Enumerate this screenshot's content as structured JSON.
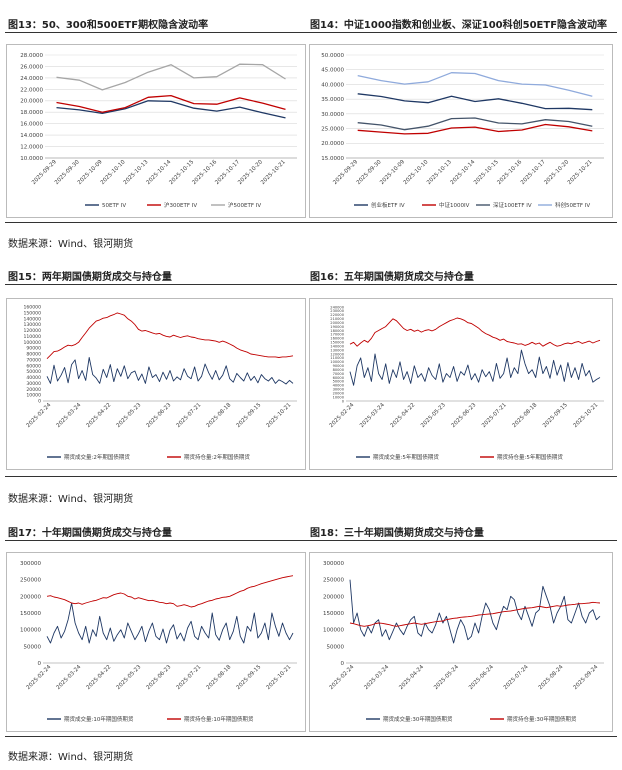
{
  "section1": {
    "title_left": "图13：50、300和500ETF期权隐含波动率",
    "title_right": "图14：中证1000指数和创业板、深证100科创50ETF隐含波动率",
    "source": "数据来源：Wind、银河期货"
  },
  "section2": {
    "title_left": "图15：两年期国债期货成交与持仓量",
    "title_right": "图16：五年期国债期货成交与持仓量",
    "source": "数据来源：Wind、银河期货"
  },
  "section3": {
    "title_left": "图17：十年期国债期货成交与持仓量",
    "title_right": "图18：三十年期国债期货成交与持仓量",
    "source": "数据来源：Wind、银河期货"
  },
  "colors": {
    "navy": "#1f3864",
    "red": "#c00000",
    "gray": "#a6a6a6",
    "lightblue": "#8faadc",
    "steel": "#44546a"
  },
  "chart_data": [
    {
      "id": "c13",
      "type": "line",
      "title": "50、300和500ETF期权隐含波动率",
      "categories": [
        "2025-09-29",
        "2025-09-30",
        "2025-10-09",
        "2025-10-10",
        "2025-10-13",
        "2025-10-14",
        "2025-10-15",
        "2025-10-16",
        "2025-10-17",
        "2025-10-20",
        "2025-10-21"
      ],
      "ylim": [
        10,
        28
      ],
      "yticks": [
        "10.0000",
        "12.0000",
        "14.0000",
        "16.0000",
        "18.0000",
        "20.0000",
        "22.0000",
        "24.0000",
        "26.0000",
        "28.0000"
      ],
      "series": [
        {
          "name": "50ETF IV",
          "color": "#1f3864",
          "values": [
            18.8,
            18.4,
            17.8,
            18.6,
            20.0,
            19.9,
            18.7,
            18.2,
            18.9,
            17.9,
            17.0
          ]
        },
        {
          "name": "沪300ETF IV",
          "color": "#c00000",
          "values": [
            19.7,
            19.0,
            18.0,
            18.8,
            20.6,
            20.9,
            19.5,
            19.4,
            20.5,
            19.6,
            18.5
          ]
        },
        {
          "name": "沪500ETF IV",
          "color": "#a6a6a6",
          "values": [
            24.1,
            23.6,
            21.9,
            23.2,
            25.0,
            26.3,
            24.0,
            24.2,
            26.4,
            26.3,
            23.8
          ]
        }
      ]
    },
    {
      "id": "c14",
      "type": "line",
      "title": "中证1000指数和创业板、深证100科创50ETF隐含波动率",
      "categories": [
        "2025-09-29",
        "2025-09-30",
        "2025-10-09",
        "2025-10-10",
        "2025-10-13",
        "2025-10-14",
        "2025-10-15",
        "2025-10-16",
        "2025-10-17",
        "2025-10-20",
        "2025-10-21"
      ],
      "ylim": [
        15,
        50
      ],
      "yticks": [
        "15.0000",
        "20.0000",
        "25.0000",
        "30.0000",
        "35.0000",
        "40.0000",
        "45.0000",
        "50.0000"
      ],
      "series": [
        {
          "name": "创业板ETF IV",
          "color": "#1f3864",
          "values": [
            36.8,
            35.9,
            34.4,
            33.8,
            36.0,
            34.2,
            35.1,
            33.6,
            31.8,
            31.9,
            31.4
          ]
        },
        {
          "name": "中证1000IV",
          "color": "#c00000",
          "values": [
            24.4,
            23.8,
            23.2,
            23.4,
            25.2,
            25.5,
            24.0,
            24.5,
            26.4,
            25.6,
            24.2
          ]
        },
        {
          "name": "深证100ETF IV",
          "color": "#44546a",
          "values": [
            27.0,
            26.2,
            24.6,
            25.8,
            28.4,
            28.6,
            26.9,
            26.6,
            28.0,
            27.4,
            25.8
          ]
        },
        {
          "name": "科创50ETF IV",
          "color": "#8faadc",
          "values": [
            43.0,
            41.3,
            40.1,
            40.9,
            44.0,
            43.7,
            41.3,
            40.1,
            39.8,
            38.0,
            36.0
          ]
        }
      ]
    },
    {
      "id": "c15",
      "type": "line",
      "title": "两年期国债期货成交与持仓量",
      "xticks": [
        "2025-02-24",
        "2025-03-24",
        "2025-04-22",
        "2025-05-23",
        "2025-06-23",
        "2025-07-21",
        "2025-08-18",
        "2025-09-15",
        "2025-10-21"
      ],
      "ylim": [
        0,
        160000
      ],
      "yticks": [
        "0",
        "10000",
        "20000",
        "30000",
        "40000",
        "50000",
        "60000",
        "70000",
        "80000",
        "90000",
        "100000",
        "110000",
        "120000",
        "130000",
        "140000",
        "150000",
        "160000"
      ],
      "series": [
        {
          "name": "期货成交量:2年期国债期货",
          "color": "#1f3864",
          "values": [
            42000,
            30000,
            61000,
            34000,
            44000,
            57000,
            31000,
            62000,
            70000,
            38000,
            52000,
            35000,
            74000,
            45000,
            39000,
            30000,
            54000,
            40000,
            62000,
            33000,
            55000,
            42000,
            60000,
            38000,
            48000,
            51000,
            35000,
            46000,
            30000,
            58000,
            40000,
            45000,
            33000,
            49000,
            37000,
            52000,
            34000,
            41000,
            36000,
            55000,
            42000,
            38000,
            58000,
            34000,
            42000,
            63000,
            48000,
            37000,
            52000,
            36000,
            44000,
            60000,
            38000,
            32000,
            47000,
            40000,
            34000,
            48000,
            35000,
            42000,
            31000,
            45000,
            38000,
            34000,
            40000,
            30000,
            36000,
            33000,
            29000,
            35000,
            30000
          ]
        },
        {
          "name": "期货持仓量:2年期国债期货",
          "color": "#c00000",
          "values": [
            72000,
            78000,
            84000,
            85000,
            88000,
            92000,
            95000,
            94000,
            96000,
            100000,
            108000,
            116000,
            124000,
            130000,
            136000,
            138000,
            141000,
            142000,
            145000,
            147000,
            150000,
            148000,
            146000,
            140000,
            136000,
            130000,
            122000,
            119000,
            120000,
            118000,
            116000,
            114000,
            115000,
            112000,
            110000,
            109000,
            112000,
            110000,
            108000,
            110000,
            111000,
            109000,
            108000,
            106000,
            105000,
            104000,
            104000,
            103000,
            102000,
            100000,
            102000,
            100000,
            97000,
            94000,
            90000,
            87000,
            85000,
            83000,
            80000,
            79000,
            78000,
            77000,
            76000,
            75000,
            75000,
            75000,
            74000,
            75000,
            75000,
            76000,
            77000
          ]
        }
      ]
    },
    {
      "id": "c16",
      "type": "line",
      "title": "五年期国债期货成交与持仓量",
      "xticks": [
        "2025-02-24",
        "2025-03-24",
        "2025-04-22",
        "2025-05-23",
        "2025-06-23",
        "2025-07-21",
        "2025-08-18",
        "2025-09-15",
        "2025-10-21"
      ],
      "ylim": [
        0,
        240000
      ],
      "yticks": [
        "0",
        "10000",
        "20000",
        "30000",
        "40000",
        "50000",
        "60000",
        "70000",
        "80000",
        "90000",
        "100000",
        "110000",
        "120000",
        "130000",
        "140000",
        "150000",
        "160000",
        "170000",
        "180000",
        "190000",
        "200000",
        "210000",
        "220000",
        "230000",
        "240000"
      ],
      "series": [
        {
          "name": "期货成交量:5年期国债期货",
          "color": "#1f3864",
          "values": [
            75000,
            40000,
            90000,
            110000,
            60000,
            85000,
            50000,
            120000,
            70000,
            55000,
            95000,
            45000,
            80000,
            60000,
            100000,
            55000,
            75000,
            45000,
            90000,
            60000,
            70000,
            50000,
            85000,
            65000,
            55000,
            95000,
            48000,
            70000,
            60000,
            88000,
            50000,
            75000,
            66000,
            92000,
            54000,
            70000,
            48000,
            80000,
            62000,
            75000,
            50000,
            96000,
            58000,
            70000,
            110000,
            60000,
            85000,
            70000,
            130000,
            95000,
            70000,
            80000,
            60000,
            112000,
            70000,
            88000,
            58000,
            104000,
            66000,
            92000,
            50000,
            98000,
            60000,
            85000,
            55000,
            96000,
            64000,
            78000,
            48000,
            55000,
            60000
          ]
        },
        {
          "name": "期货持仓量:5年期国债期货",
          "color": "#c00000",
          "values": [
            145000,
            150000,
            140000,
            148000,
            155000,
            150000,
            160000,
            175000,
            180000,
            185000,
            190000,
            200000,
            210000,
            205000,
            195000,
            185000,
            180000,
            183000,
            178000,
            181000,
            176000,
            180000,
            182000,
            179000,
            183000,
            190000,
            195000,
            200000,
            205000,
            208000,
            212000,
            210000,
            206000,
            200000,
            198000,
            192000,
            186000,
            178000,
            172000,
            168000,
            163000,
            160000,
            155000,
            158000,
            152000,
            150000,
            148000,
            145000,
            146000,
            142000,
            145000,
            150000,
            145000,
            148000,
            140000,
            145000,
            150000,
            144000,
            140000,
            142000,
            146000,
            148000,
            146000,
            150000,
            152000,
            147000,
            150000,
            153000,
            148000,
            152000,
            155000
          ]
        }
      ]
    },
    {
      "id": "c17",
      "type": "line",
      "title": "十年期国债期货成交与持仓量",
      "xticks": [
        "2025-02-24",
        "2025-03-24",
        "2025-04-22",
        "2025-05-23",
        "2025-06-23",
        "2025-07-21",
        "2025-08-18",
        "2025-09-15",
        "2025-10-21"
      ],
      "ylim": [
        0,
        300000
      ],
      "yticks": [
        "0",
        "50000",
        "100000",
        "150000",
        "200000",
        "250000",
        "300000"
      ],
      "series": [
        {
          "name": "期货成交量:10年期国债期货",
          "color": "#1f3864",
          "values": [
            80000,
            60000,
            90000,
            110000,
            75000,
            95000,
            130000,
            180000,
            120000,
            90000,
            70000,
            110000,
            60000,
            100000,
            80000,
            140000,
            90000,
            70000,
            105000,
            65000,
            85000,
            100000,
            75000,
            120000,
            95000,
            70000,
            88000,
            110000,
            64000,
            96000,
            120000,
            80000,
            70000,
            102000,
            60000,
            98000,
            115000,
            72000,
            90000,
            66000,
            105000,
            125000,
            80000,
            70000,
            110000,
            90000,
            75000,
            150000,
            85000,
            68000,
            100000,
            120000,
            70000,
            95000,
            140000,
            80000,
            60000,
            110000,
            95000,
            150000,
            75000,
            90000,
            120000,
            70000,
            150000,
            110000,
            80000,
            120000,
            90000,
            70000,
            90000
          ]
        },
        {
          "name": "期货持仓量:10年期国债期货",
          "color": "#c00000",
          "values": [
            200000,
            202000,
            198000,
            196000,
            193000,
            190000,
            185000,
            180000,
            178000,
            180000,
            176000,
            180000,
            183000,
            186000,
            188000,
            192000,
            196000,
            195000,
            200000,
            205000,
            208000,
            210000,
            207000,
            200000,
            198000,
            192000,
            196000,
            193000,
            190000,
            187000,
            188000,
            185000,
            182000,
            181000,
            178000,
            180000,
            178000,
            170000,
            172000,
            175000,
            172000,
            168000,
            170000,
            175000,
            178000,
            182000,
            186000,
            188000,
            192000,
            194000,
            197000,
            198000,
            200000,
            205000,
            210000,
            215000,
            218000,
            224000,
            228000,
            230000,
            234000,
            238000,
            241000,
            244000,
            247000,
            250000,
            253000,
            256000,
            258000,
            260000,
            262000
          ]
        }
      ]
    },
    {
      "id": "c18",
      "type": "line",
      "title": "三十年期国债期货成交与持仓量",
      "xticks": [
        "2025-02-24",
        "2025-03-24",
        "2025-04-24",
        "2025-05-24",
        "2025-06-24",
        "2025-07-24",
        "2025-08-24",
        "2025-09-24"
      ],
      "ylim": [
        0,
        300000
      ],
      "yticks": [
        "0",
        "50000",
        "100000",
        "150000",
        "200000",
        "250000",
        "300000"
      ],
      "series": [
        {
          "name": "期货成交量:30年期国债期货",
          "color": "#1f3864",
          "values": [
            250000,
            120000,
            150000,
            100000,
            80000,
            110000,
            90000,
            120000,
            130000,
            80000,
            100000,
            70000,
            95000,
            120000,
            100000,
            85000,
            110000,
            130000,
            140000,
            90000,
            80000,
            120000,
            100000,
            90000,
            115000,
            150000,
            120000,
            140000,
            100000,
            60000,
            100000,
            130000,
            110000,
            70000,
            80000,
            120000,
            90000,
            140000,
            180000,
            160000,
            120000,
            100000,
            140000,
            170000,
            160000,
            200000,
            190000,
            150000,
            130000,
            170000,
            140000,
            110000,
            150000,
            160000,
            230000,
            200000,
            170000,
            120000,
            150000,
            170000,
            200000,
            130000,
            120000,
            150000,
            180000,
            140000,
            120000,
            150000,
            160000,
            130000,
            140000
          ]
        },
        {
          "name": "期货持仓量:30年期国债期货",
          "color": "#c00000",
          "values": [
            120000,
            118000,
            115000,
            112000,
            110000,
            112000,
            114000,
            118000,
            120000,
            119000,
            117000,
            115000,
            112000,
            110000,
            112000,
            114000,
            116000,
            118000,
            120000,
            118000,
            116000,
            118000,
            120000,
            122000,
            124000,
            125000,
            126000,
            130000,
            132000,
            134000,
            135000,
            137000,
            138000,
            139000,
            140000,
            142000,
            144000,
            145000,
            146000,
            147000,
            148000,
            150000,
            152000,
            154000,
            155000,
            156000,
            158000,
            160000,
            162000,
            164000,
            165000,
            166000,
            168000,
            170000,
            168000,
            166000,
            168000,
            170000,
            172000,
            170000,
            172000,
            174000,
            175000,
            176000,
            178000,
            178000,
            179000,
            180000,
            182000,
            181000,
            180000
          ]
        }
      ]
    }
  ]
}
